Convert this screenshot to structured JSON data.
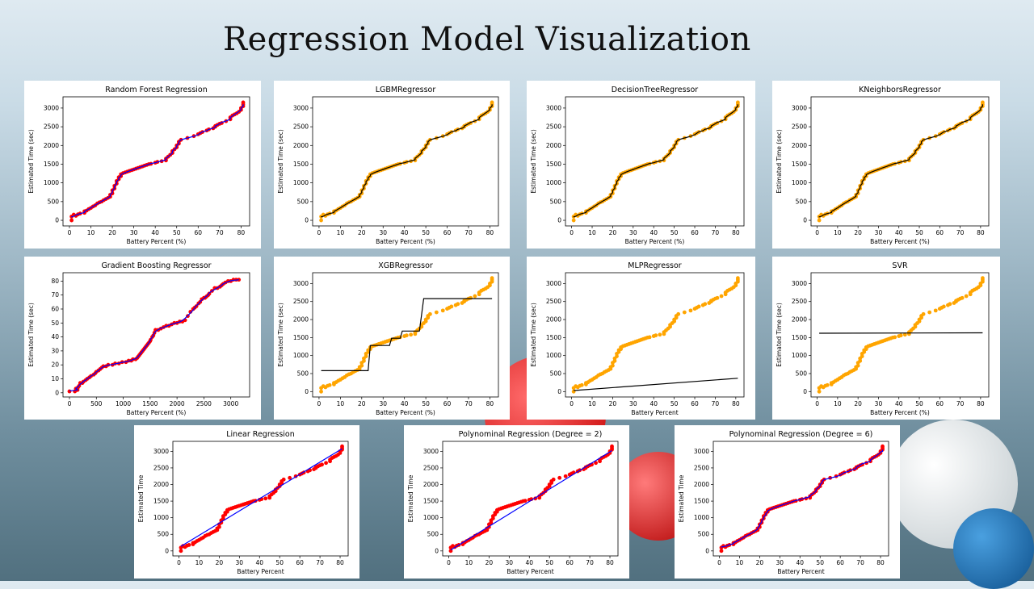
{
  "slide": {
    "title": "Regression Model Visualization"
  },
  "colors": {
    "orange": "#ffa500",
    "red": "#ff0000",
    "blue": "#0000ff",
    "black": "#000000"
  },
  "base_points": {
    "x": [
      1,
      1,
      2,
      3,
      4,
      5,
      7,
      7,
      8,
      9,
      10,
      11,
      12,
      13,
      14,
      15,
      16,
      17,
      18,
      19,
      19,
      20,
      20,
      21,
      21,
      22,
      22,
      23,
      23,
      24,
      24,
      25,
      26,
      27,
      28,
      29,
      30,
      31,
      32,
      33,
      34,
      35,
      36,
      37,
      38,
      40,
      41,
      43,
      45,
      45,
      46,
      47,
      48,
      48,
      49,
      50,
      50,
      51,
      51,
      52,
      55,
      58,
      60,
      61,
      62,
      64,
      65,
      67,
      68,
      68,
      69,
      70,
      71,
      73,
      75,
      75,
      76,
      77,
      78,
      79,
      80,
      80,
      81,
      81,
      81
    ],
    "y": [
      0,
      100,
      150,
      120,
      160,
      180,
      200,
      240,
      260,
      300,
      330,
      370,
      400,
      450,
      480,
      500,
      540,
      570,
      600,
      630,
      680,
      720,
      800,
      850,
      920,
      980,
      1050,
      1100,
      1150,
      1180,
      1230,
      1260,
      1280,
      1300,
      1320,
      1340,
      1360,
      1380,
      1400,
      1420,
      1440,
      1460,
      1480,
      1500,
      1510,
      1540,
      1560,
      1580,
      1600,
      1650,
      1700,
      1750,
      1800,
      1850,
      1900,
      1950,
      2000,
      2050,
      2100,
      2150,
      2200,
      2250,
      2300,
      2330,
      2360,
      2400,
      2430,
      2460,
      2500,
      2520,
      2550,
      2580,
      2600,
      2650,
      2700,
      2750,
      2800,
      2830,
      2860,
      2900,
      2950,
      3000,
      3050,
      3100,
      3150
    ]
  },
  "charts": [
    {
      "name": "Random Forest Regression",
      "xlabel": "Battery Percent (%)",
      "ylabel": "Estimated Time (sec)",
      "point_color": "red",
      "line_color": "blue",
      "line_type": "step_smooth",
      "xlim": [
        -3,
        84
      ],
      "ylim": [
        -150,
        3300
      ],
      "xticks": [
        0,
        10,
        20,
        30,
        40,
        50,
        60,
        70,
        80
      ],
      "yticks": [
        0,
        500,
        1000,
        1500,
        2000,
        2500,
        3000
      ]
    },
    {
      "name": "LGBMRegressor",
      "xlabel": "Battery Percent (%)",
      "ylabel": "Estimated Time (sec)",
      "point_color": "orange",
      "line_color": "black",
      "line_type": "step_smooth",
      "xlim": [
        -3,
        84
      ],
      "ylim": [
        -150,
        3300
      ],
      "xticks": [
        0,
        10,
        20,
        30,
        40,
        50,
        60,
        70,
        80
      ],
      "yticks": [
        0,
        500,
        1000,
        1500,
        2000,
        2500,
        3000
      ]
    },
    {
      "name": "DecisionTreeRegressor",
      "xlabel": "Battery Percent (%)",
      "ylabel": "Estimated Time (sec)",
      "point_color": "orange",
      "line_color": "black",
      "line_type": "step_smooth",
      "xlim": [
        -3,
        84
      ],
      "ylim": [
        -150,
        3300
      ],
      "xticks": [
        0,
        10,
        20,
        30,
        40,
        50,
        60,
        70,
        80
      ],
      "yticks": [
        0,
        500,
        1000,
        1500,
        2000,
        2500,
        3000
      ]
    },
    {
      "name": "KNeighborsRegressor",
      "xlabel": "Battery Percent (%)",
      "ylabel": "Estimated Time (sec)",
      "point_color": "orange",
      "line_color": "black",
      "line_type": "step_smooth",
      "xlim": [
        -3,
        84
      ],
      "ylim": [
        -150,
        3300
      ],
      "xticks": [
        0,
        10,
        20,
        30,
        40,
        50,
        60,
        70,
        80
      ],
      "yticks": [
        0,
        500,
        1000,
        1500,
        2000,
        2500,
        3000
      ]
    },
    {
      "name": "Gradient Boosting Regressor",
      "xlabel": "Battery Percent (%)",
      "ylabel": "Estimated Time (sec)",
      "point_color": "red",
      "line_color": "blue",
      "line_type": "gb",
      "xlim": [
        -120,
        3350
      ],
      "ylim": [
        -3,
        86
      ],
      "xticks": [
        0,
        500,
        1000,
        1500,
        2000,
        2500,
        3000
      ],
      "yticks": [
        0,
        10,
        20,
        30,
        40,
        50,
        60,
        70,
        80
      ]
    },
    {
      "name": "XGBRegressor",
      "xlabel": "Battery Percent (%)",
      "ylabel": "Estimated Time (sec)",
      "point_color": "orange",
      "line_color": "black",
      "line_type": "steps",
      "line_points": [
        [
          1,
          580
        ],
        [
          23,
          580
        ],
        [
          24,
          1280
        ],
        [
          33,
          1280
        ],
        [
          34,
          1480
        ],
        [
          38,
          1480
        ],
        [
          39,
          1680
        ],
        [
          47,
          1680
        ],
        [
          49,
          2580
        ],
        [
          81,
          2580
        ]
      ],
      "xlim": [
        -3,
        84
      ],
      "ylim": [
        -150,
        3300
      ],
      "xticks": [
        0,
        10,
        20,
        30,
        40,
        50,
        60,
        70,
        80
      ],
      "yticks": [
        0,
        500,
        1000,
        1500,
        2000,
        2500,
        3000
      ]
    },
    {
      "name": "MLPRegressor",
      "xlabel": "Battery Percent",
      "ylabel": "Estimated Time (sec)",
      "point_color": "orange",
      "line_color": "black",
      "line_type": "linear",
      "line_points": [
        [
          1,
          30
        ],
        [
          81,
          370
        ]
      ],
      "xlim": [
        -3,
        84
      ],
      "ylim": [
        -150,
        3300
      ],
      "xticks": [
        0,
        10,
        20,
        30,
        40,
        50,
        60,
        70,
        80
      ],
      "yticks": [
        0,
        500,
        1000,
        1500,
        2000,
        2500,
        3000
      ]
    },
    {
      "name": "SVR",
      "xlabel": "Battery Percent (%)",
      "ylabel": "Estimated Time (sec)",
      "point_color": "orange",
      "line_color": "black",
      "line_type": "linear",
      "line_points": [
        [
          1,
          1620
        ],
        [
          81,
          1630
        ]
      ],
      "xlim": [
        -3,
        84
      ],
      "ylim": [
        -150,
        3300
      ],
      "xticks": [
        0,
        10,
        20,
        30,
        40,
        50,
        60,
        70,
        80
      ],
      "yticks": [
        0,
        500,
        1000,
        1500,
        2000,
        2500,
        3000
      ]
    },
    {
      "name": "Linear Regression",
      "xlabel": "Battery Percent",
      "ylabel": "Estimated Time",
      "point_color": "red",
      "line_color": "blue",
      "line_type": "linear",
      "line_points": [
        [
          1,
          140
        ],
        [
          81,
          3080
        ]
      ],
      "xlim": [
        -3,
        84
      ],
      "ylim": [
        -150,
        3300
      ],
      "xticks": [
        0,
        10,
        20,
        30,
        40,
        50,
        60,
        70,
        80
      ],
      "yticks": [
        0,
        500,
        1000,
        1500,
        2000,
        2500,
        3000
      ]
    },
    {
      "name": "Polynominal Regression (Degree = 2)",
      "xlabel": "Battery Percent",
      "ylabel": "Estimated Time",
      "point_color": "red",
      "line_color": "blue",
      "line_type": "linear",
      "line_points": [
        [
          1,
          30
        ],
        [
          81,
          3020
        ]
      ],
      "xlim": [
        -3,
        84
      ],
      "ylim": [
        -150,
        3300
      ],
      "xticks": [
        0,
        10,
        20,
        30,
        40,
        50,
        60,
        70,
        80
      ],
      "yticks": [
        0,
        500,
        1000,
        1500,
        2000,
        2500,
        3000
      ]
    },
    {
      "name": "Polynominal Regression (Degree = 6)",
      "xlabel": "Battery Percent",
      "ylabel": "Estimated Time",
      "point_color": "red",
      "line_color": "blue",
      "line_type": "poly6",
      "xlim": [
        -3,
        84
      ],
      "ylim": [
        -150,
        3300
      ],
      "xticks": [
        0,
        10,
        20,
        30,
        40,
        50,
        60,
        70,
        80
      ],
      "yticks": [
        0,
        500,
        1000,
        1500,
        2000,
        2500,
        3000
      ]
    }
  ],
  "chart_data": [
    {
      "type": "scatter",
      "title": "Random Forest Regression",
      "xlabel": "Battery Percent (%)",
      "ylabel": "Estimated Time (sec)",
      "xlim": [
        -3,
        84
      ],
      "ylim": [
        -150,
        3300
      ]
    },
    {
      "type": "scatter",
      "title": "LGBMRegressor",
      "xlabel": "Battery Percent (%)",
      "ylabel": "Estimated Time (sec)",
      "xlim": [
        -3,
        84
      ],
      "ylim": [
        -150,
        3300
      ]
    },
    {
      "type": "scatter",
      "title": "DecisionTreeRegressor",
      "xlabel": "Battery Percent (%)",
      "ylabel": "Estimated Time (sec)",
      "xlim": [
        -3,
        84
      ],
      "ylim": [
        -150,
        3300
      ]
    },
    {
      "type": "scatter",
      "title": "KNeighborsRegressor",
      "xlabel": "Battery Percent (%)",
      "ylabel": "Estimated Time (sec)",
      "xlim": [
        -3,
        84
      ],
      "ylim": [
        -150,
        3300
      ]
    },
    {
      "type": "scatter",
      "title": "Gradient Boosting Regressor",
      "xlabel": "Battery Percent (%)",
      "ylabel": "Estimated Time (sec)",
      "xlim": [
        -120,
        3350
      ],
      "ylim": [
        -3,
        86
      ]
    },
    {
      "type": "scatter",
      "title": "XGBRegressor",
      "xlabel": "Battery Percent (%)",
      "ylabel": "Estimated Time (sec)",
      "xlim": [
        -3,
        84
      ],
      "ylim": [
        -150,
        3300
      ]
    },
    {
      "type": "scatter",
      "title": "MLPRegressor",
      "xlabel": "Battery Percent",
      "ylabel": "Estimated Time (sec)",
      "xlim": [
        -3,
        84
      ],
      "ylim": [
        -150,
        3300
      ]
    },
    {
      "type": "scatter",
      "title": "SVR",
      "xlabel": "Battery Percent (%)",
      "ylabel": "Estimated Time (sec)",
      "xlim": [
        -3,
        84
      ],
      "ylim": [
        -150,
        3300
      ]
    },
    {
      "type": "scatter",
      "title": "Linear Regression",
      "xlabel": "Battery Percent",
      "ylabel": "Estimated Time",
      "xlim": [
        -3,
        84
      ],
      "ylim": [
        -150,
        3300
      ]
    },
    {
      "type": "scatter",
      "title": "Polynominal Regression (Degree = 2)",
      "xlabel": "Battery Percent",
      "ylabel": "Estimated Time",
      "xlim": [
        -3,
        84
      ],
      "ylim": [
        -150,
        3300
      ]
    },
    {
      "type": "scatter",
      "title": "Polynominal Regression (Degree = 6)",
      "xlabel": "Battery Percent",
      "ylabel": "Estimated Time",
      "xlim": [
        -3,
        84
      ],
      "ylim": [
        -150,
        3300
      ]
    }
  ]
}
